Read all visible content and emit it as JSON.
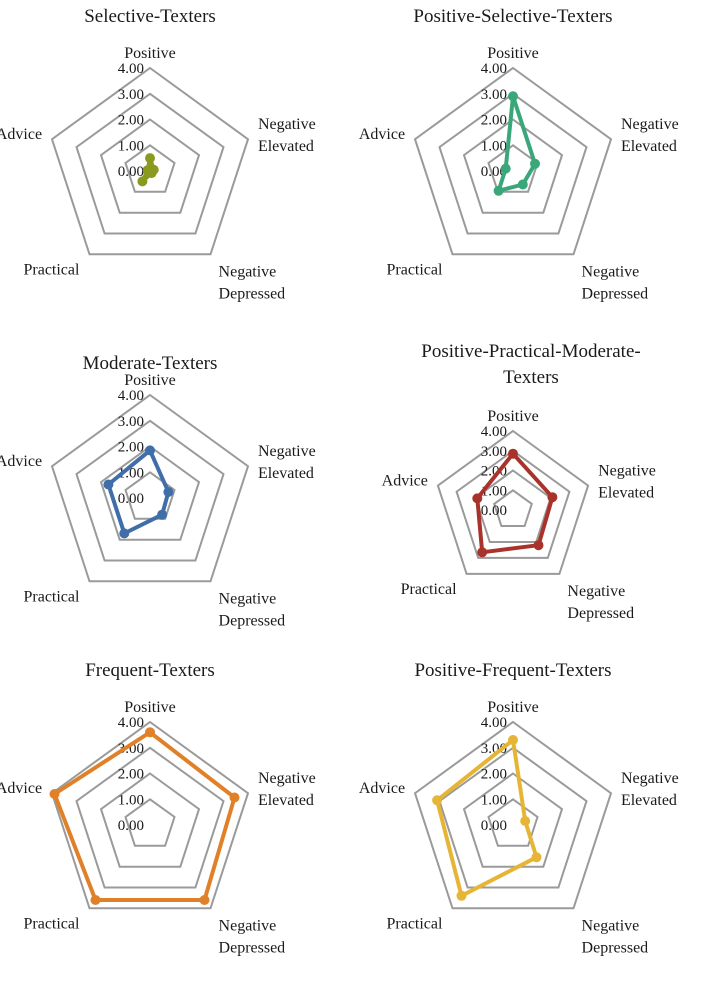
{
  "chart_data": [
    {
      "type": "radar",
      "title": "Selective-Texters",
      "axes": [
        "Positive",
        "Negative Elevated",
        "Negative Depressed",
        "Practical",
        "Advice"
      ],
      "ticks": [
        "0.00",
        "1.00",
        "2.00",
        "3.00",
        "4.00"
      ],
      "ylim": [
        0,
        4
      ],
      "series": [
        {
          "values": [
            0.5,
            0.15,
            0.1,
            0.5,
            0.1
          ]
        }
      ],
      "color": "#8a9a1f"
    },
    {
      "type": "radar",
      "title": "Positive-Selective-Texters",
      "axes": [
        "Positive",
        "Negative Elevated",
        "Negative Depressed",
        "Practical",
        "Advice"
      ],
      "ticks": [
        "0.00",
        "1.00",
        "2.00",
        "3.00",
        "4.00"
      ],
      "ylim": [
        0,
        4
      ],
      "series": [
        {
          "values": [
            2.9,
            0.9,
            0.65,
            0.95,
            0.3
          ]
        }
      ],
      "color": "#3aa77a"
    },
    {
      "type": "radar",
      "title": "Moderate-Texters",
      "axes": [
        "Positive",
        "Negative Elevated",
        "Negative Depressed",
        "Practical",
        "Advice"
      ],
      "ticks": [
        "0.00",
        "1.00",
        "2.00",
        "3.00",
        "4.00"
      ],
      "ylim": [
        0,
        4
      ],
      "series": [
        {
          "values": [
            1.85,
            0.75,
            0.8,
            1.7,
            1.7
          ]
        }
      ],
      "color": "#3f6ea8"
    },
    {
      "type": "radar",
      "title": "Positive-Practical-Moderate-\nTexters",
      "axes": [
        "Positive",
        "Negative Elevated",
        "Negative Depressed",
        "Practical",
        "Advice"
      ],
      "ticks": [
        "0.00",
        "1.00",
        "2.00",
        "3.00",
        "4.00"
      ],
      "ylim": [
        0,
        4
      ],
      "series": [
        {
          "values": [
            2.85,
            2.1,
            2.2,
            2.65,
            1.9
          ]
        }
      ],
      "color": "#a9332b"
    },
    {
      "type": "radar",
      "title": "Frequent-Texters",
      "axes": [
        "Positive",
        "Negative Elevated",
        "Negative Depressed",
        "Practical",
        "Advice"
      ],
      "ticks": [
        "0.00",
        "1.00",
        "2.00",
        "3.00",
        "4.00"
      ],
      "ylim": [
        0,
        4
      ],
      "series": [
        {
          "values": [
            3.6,
            3.45,
            3.6,
            3.6,
            3.9
          ]
        }
      ],
      "color": "#e0812a"
    },
    {
      "type": "radar",
      "title": "Positive-Frequent-Texters",
      "axes": [
        "Positive",
        "Negative Elevated",
        "Negative Depressed",
        "Practical",
        "Advice"
      ],
      "ticks": [
        "0.00",
        "1.00",
        "2.00",
        "3.00",
        "4.00"
      ],
      "ylim": [
        0,
        4
      ],
      "series": [
        {
          "values": [
            3.3,
            0.5,
            1.55,
            3.4,
            3.1
          ]
        }
      ],
      "color": "#e6b535"
    }
  ],
  "style": {
    "grid_color": "#9a9a9a",
    "grid_rings": 4,
    "grid": true,
    "legend": "none"
  }
}
